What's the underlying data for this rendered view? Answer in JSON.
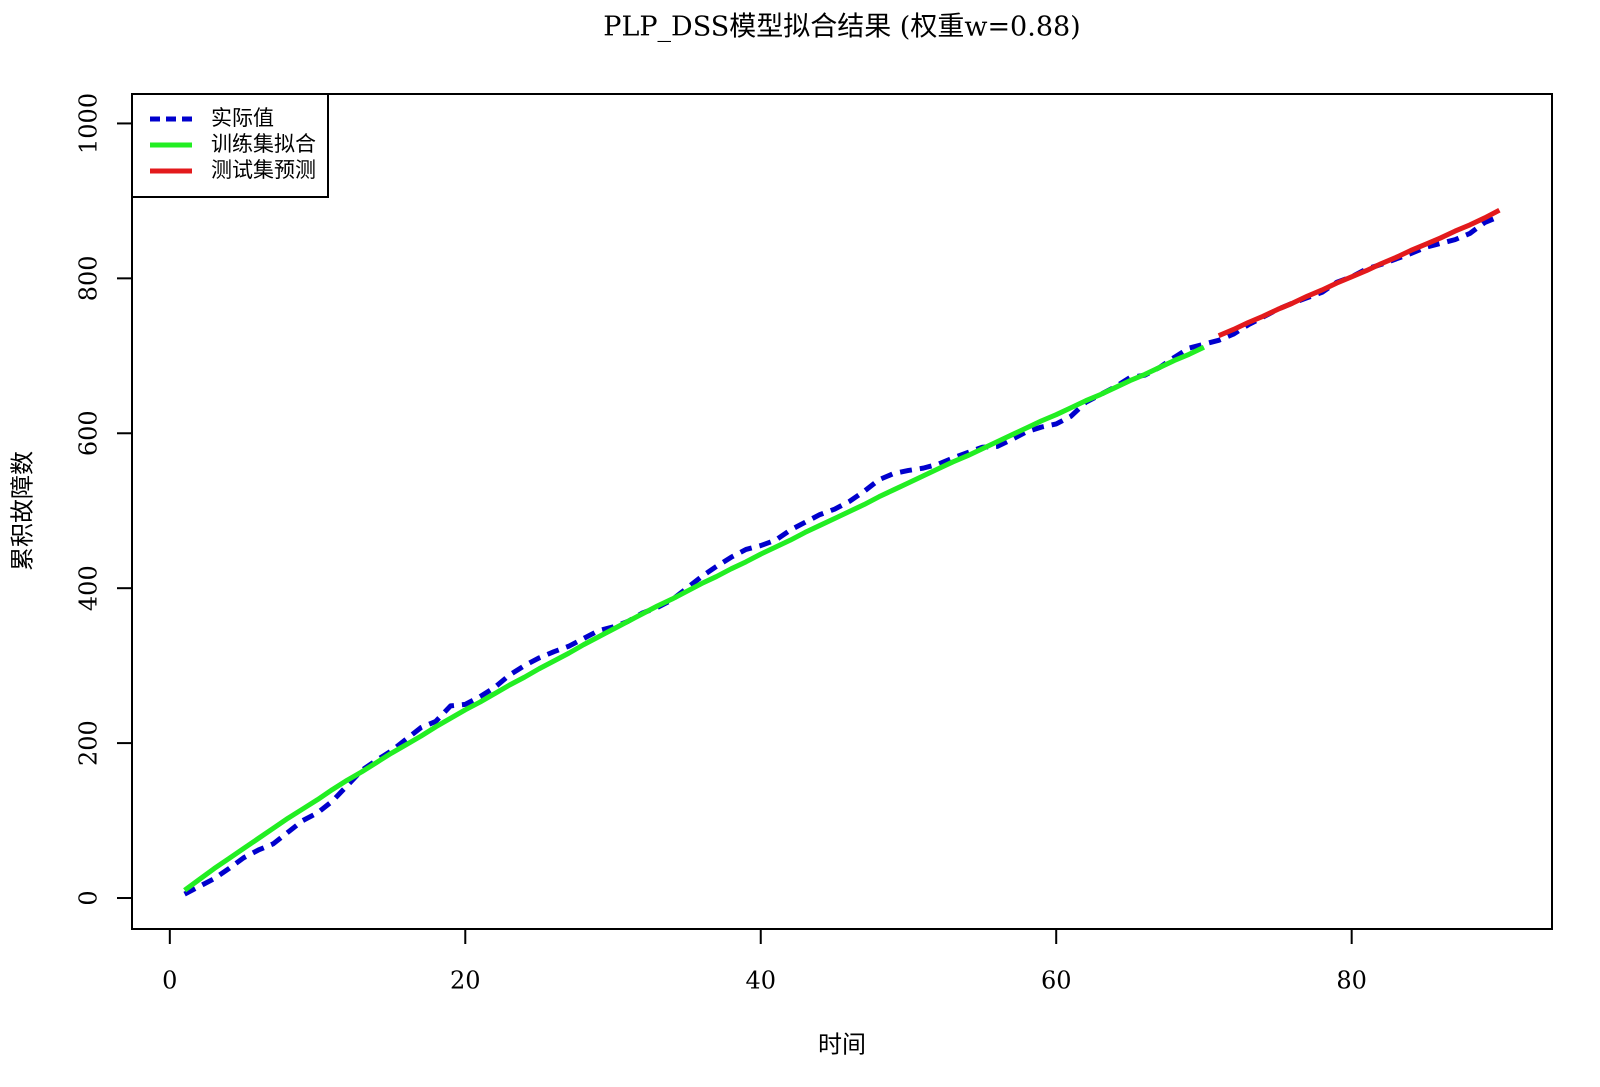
{
  "chart_data": {
    "type": "line",
    "title": "PLP_DSS模型拟合结果 (权重w=0.88)",
    "x_label": "时间",
    "y_label": "累积故障数",
    "xlim": [
      -2.56,
      93.56
    ],
    "ylim": [
      -40,
      1038
    ],
    "xticks": [
      0,
      20,
      40,
      60,
      80
    ],
    "yticks": [
      0,
      200,
      400,
      600,
      800,
      1000
    ],
    "legend": "top-left",
    "series": [
      {
        "name": "实际值",
        "color": "#0000cd",
        "linestyle": "dashed",
        "x": [
          1,
          2,
          3,
          4,
          5,
          6,
          7,
          8,
          9,
          10,
          11,
          12,
          13,
          14,
          15,
          16,
          17,
          18,
          19,
          20,
          21,
          22,
          23,
          24,
          25,
          26,
          27,
          28,
          29,
          30,
          31,
          32,
          33,
          34,
          35,
          36,
          37,
          38,
          39,
          40,
          41,
          42,
          43,
          44,
          45,
          46,
          47,
          48,
          49,
          50,
          51,
          52,
          53,
          54,
          55,
          56,
          57,
          58,
          59,
          60,
          61,
          62,
          63,
          64,
          65,
          66,
          67,
          68,
          69,
          70,
          71,
          72,
          73,
          74,
          75,
          76,
          77,
          78,
          79,
          80,
          81,
          82,
          83,
          84,
          85,
          86,
          87,
          88,
          89,
          90
        ],
        "values": [
          5,
          15,
          25,
          38,
          52,
          62,
          70,
          85,
          100,
          110,
          125,
          145,
          165,
          178,
          190,
          205,
          220,
          228,
          248,
          250,
          260,
          272,
          288,
          300,
          310,
          318,
          325,
          335,
          345,
          350,
          357,
          368,
          375,
          385,
          400,
          415,
          428,
          440,
          450,
          455,
          462,
          475,
          485,
          495,
          502,
          512,
          525,
          540,
          548,
          552,
          555,
          560,
          568,
          575,
          582,
          583,
          592,
          602,
          608,
          612,
          622,
          640,
          650,
          660,
          672,
          675,
          685,
          698,
          710,
          715,
          720,
          728,
          740,
          750,
          760,
          768,
          775,
          782,
          795,
          802,
          812,
          818,
          825,
          832,
          840,
          845,
          850,
          858,
          872,
          880
        ]
      },
      {
        "name": "训练集拟合",
        "color": "#22ee22",
        "linestyle": "solid",
        "x": [
          1,
          2,
          3,
          4,
          5,
          6,
          7,
          8,
          9,
          10,
          11,
          12,
          13,
          14,
          15,
          16,
          17,
          18,
          19,
          20,
          21,
          22,
          23,
          24,
          25,
          26,
          27,
          28,
          29,
          30,
          31,
          32,
          33,
          34,
          35,
          36,
          37,
          38,
          39,
          40,
          41,
          42,
          43,
          44,
          45,
          46,
          47,
          48,
          49,
          50,
          51,
          52,
          53,
          54,
          55,
          56,
          57,
          58,
          59,
          60,
          61,
          62,
          63,
          64,
          65,
          66,
          67,
          68,
          69,
          70
        ],
        "values": [
          10,
          24,
          38,
          51,
          64,
          77,
          90,
          103,
          115,
          127,
          140,
          152,
          163,
          175,
          187,
          198,
          209,
          221,
          232,
          243,
          253,
          264,
          275,
          285,
          296,
          306,
          316,
          327,
          337,
          347,
          357,
          367,
          377,
          386,
          396,
          406,
          415,
          425,
          434,
          444,
          453,
          462,
          472,
          481,
          490,
          499,
          508,
          518,
          527,
          536,
          545,
          554,
          563,
          571,
          580,
          589,
          598,
          607,
          616,
          624,
          633,
          642,
          650,
          659,
          668,
          676,
          685,
          694,
          702,
          711
        ]
      },
      {
        "name": "测试集预测",
        "color": "#e31a1c",
        "linestyle": "solid",
        "x": [
          71,
          72,
          73,
          74,
          75,
          76,
          77,
          78,
          79,
          80,
          81,
          82,
          83,
          84,
          85,
          86,
          87,
          88,
          89,
          90
        ],
        "values": [
          726,
          734,
          743,
          751,
          760,
          768,
          777,
          785,
          794,
          802,
          810,
          819,
          827,
          836,
          844,
          852,
          861,
          869,
          878,
          888
        ]
      }
    ]
  }
}
